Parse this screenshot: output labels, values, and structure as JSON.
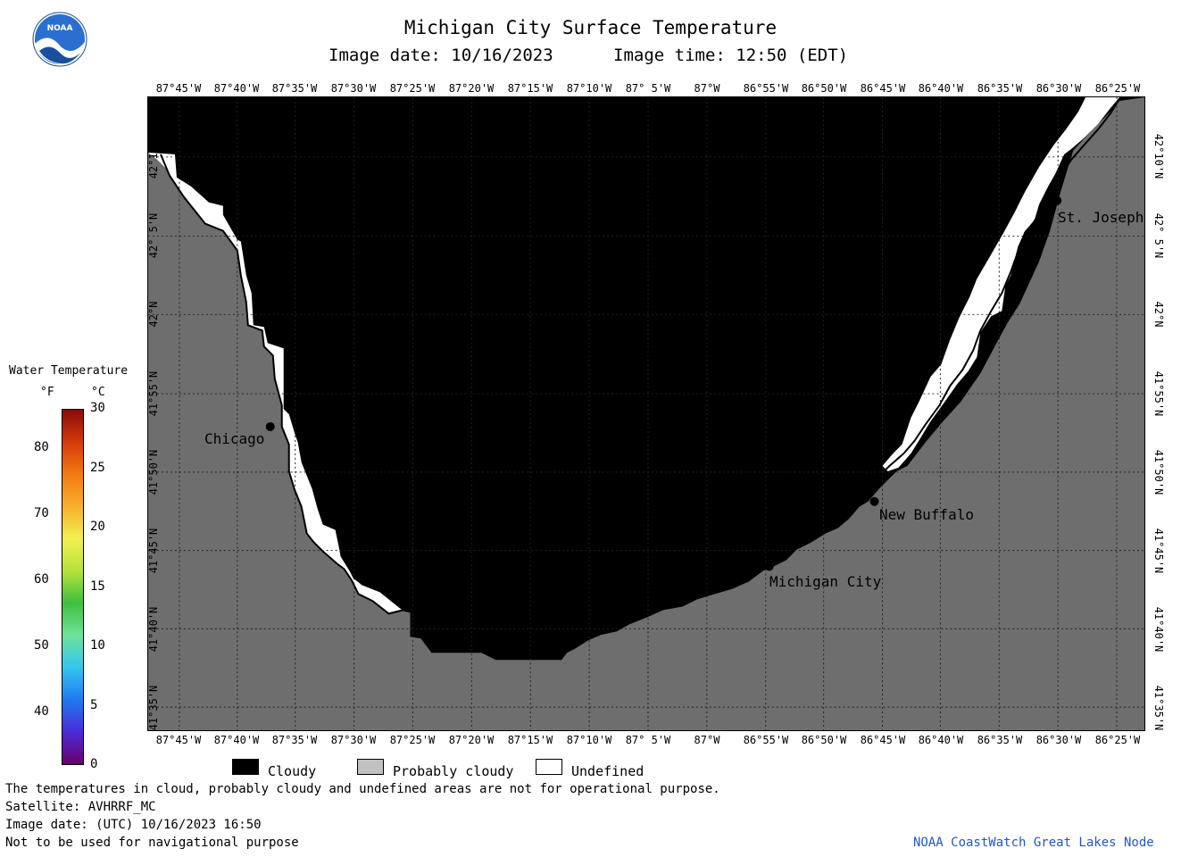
{
  "header": {
    "title": "Michigan City Surface Temperature",
    "image_date": "Image date: 10/16/2023",
    "image_time": "Image time: 12:50 (EDT)"
  },
  "map": {
    "lon_labels": [
      "87°45'W",
      "87°40'W",
      "87°35'W",
      "87°30'W",
      "87°25'W",
      "87°20'W",
      "87°15'W",
      "87°10'W",
      "87° 5'W",
      "87°W",
      "86°55'W",
      "86°50'W",
      "86°45'W",
      "86°40'W",
      "86°35'W",
      "86°30'W",
      "86°25'W"
    ],
    "lat_labels": [
      "42°10'N",
      "42° 5'N",
      "42°N",
      "41°55'N",
      "41°50'N",
      "41°45'N",
      "41°40'N",
      "41°35'N"
    ],
    "cities": [
      {
        "name": "Chicago"
      },
      {
        "name": "St. Joseph"
      },
      {
        "name": "New Buffalo"
      },
      {
        "name": "Michigan City"
      }
    ],
    "colors": {
      "cloudy": "#000000",
      "probably_cloudy": "#6e6e6e",
      "undefined": "#ffffff"
    }
  },
  "colorbar": {
    "title": "Water Temperature",
    "unit_f": "°F",
    "unit_c": "°C",
    "f_ticks": [
      "80",
      "70",
      "60",
      "50",
      "40"
    ],
    "c_ticks": [
      "30",
      "25",
      "20",
      "15",
      "10",
      "5",
      "0"
    ]
  },
  "legend": {
    "cloudy": "Cloudy",
    "probably_cloudy": "Probably cloudy",
    "undefined": "Undefined"
  },
  "footer": {
    "line1": "The temperatures in cloud, probably cloudy and undefined areas are not for operational purpose.",
    "line2": "Satellite: AVHRRF_MC",
    "line3": "Image date: (UTC) 10/16/2023  16:50",
    "line4": "Not to be used for navigational purpose",
    "credit": "NOAA CoastWatch Great Lakes Node"
  },
  "logo": {
    "text": "NOAA"
  }
}
